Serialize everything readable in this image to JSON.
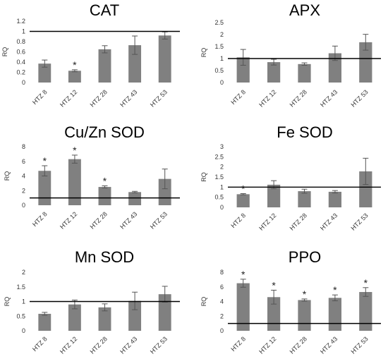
{
  "chart_data": [
    {
      "type": "bar",
      "title": "CAT",
      "ylabel": "RQ",
      "categories": [
        "HTZ 8",
        "HTZ 12",
        "HTZ 28",
        "HTZ 43",
        "HTZ 53"
      ],
      "values": [
        0.37,
        0.23,
        0.65,
        0.73,
        0.92
      ],
      "errors": [
        0.07,
        0.02,
        0.07,
        0.18,
        0.07
      ],
      "significant": [
        "",
        "*",
        "",
        "",
        ""
      ],
      "reference_line": 1,
      "ylim": [
        0,
        1.2
      ],
      "yticks": [
        0,
        0.2,
        0.4,
        0.6,
        0.8,
        1,
        1.2
      ],
      "ytick_labels": [
        "0",
        "0.2",
        "0.4",
        "0.6",
        "0.8",
        "1",
        "1.2"
      ],
      "bar_color": "#808080",
      "grid": false
    },
    {
      "type": "bar",
      "title": "APX",
      "ylabel": "RQ",
      "categories": [
        "HTZ 8",
        "HTZ 12",
        "HTZ 28",
        "HTZ 43",
        "HTZ 53"
      ],
      "values": [
        1.05,
        0.85,
        0.77,
        1.22,
        1.68
      ],
      "errors": [
        0.33,
        0.12,
        0.05,
        0.3,
        0.33
      ],
      "significant": [
        "",
        "",
        "",
        "",
        ""
      ],
      "reference_line": 1,
      "ylim": [
        0,
        2.5
      ],
      "yticks": [
        0,
        0.5,
        1,
        1.5,
        2,
        2.5
      ],
      "ytick_labels": [
        "0",
        "0.5",
        "1",
        "1.5",
        "2",
        "2.5"
      ],
      "bar_color": "#808080",
      "grid": false
    },
    {
      "type": "bar",
      "title": "Cu/Zn SOD",
      "ylabel": "RQ",
      "categories": [
        "HTZ 8",
        "HTZ 12",
        "HTZ 28",
        "HTZ 43",
        "HTZ 53"
      ],
      "values": [
        4.7,
        6.3,
        2.5,
        1.8,
        3.6
      ],
      "errors": [
        0.7,
        0.55,
        0.15,
        0.1,
        1.35
      ],
      "significant": [
        "*",
        "*",
        "*",
        "",
        ""
      ],
      "reference_line": 1,
      "ylim": [
        0,
        8
      ],
      "yticks": [
        0,
        2,
        4,
        6,
        8
      ],
      "ytick_labels": [
        "0",
        "2",
        "4",
        "6",
        "8"
      ],
      "bar_color": "#808080",
      "grid": false
    },
    {
      "type": "bar",
      "title": "Fe SOD",
      "ylabel": "RQ",
      "categories": [
        "HTZ 8",
        "HTZ 12",
        "HTZ 28",
        "HTZ 43",
        "HTZ 53"
      ],
      "values": [
        0.65,
        1.12,
        0.8,
        0.77,
        1.78
      ],
      "errors": [
        0.03,
        0.2,
        0.1,
        0.06,
        0.65
      ],
      "significant": [
        "*",
        "",
        "",
        "",
        ""
      ],
      "reference_line": 1,
      "ylim": [
        0,
        3
      ],
      "yticks": [
        0,
        0.5,
        1,
        1.5,
        2,
        2.5,
        3
      ],
      "ytick_labels": [
        "0",
        "0.5",
        "1",
        "1.5",
        "2",
        "2.5",
        "3"
      ],
      "bar_color": "#808080",
      "grid": false
    },
    {
      "type": "bar",
      "title": "Mn SOD",
      "ylabel": "RQ",
      "categories": [
        "HTZ 8",
        "HTZ 12",
        "HTZ 28",
        "HTZ 43",
        "HTZ 53"
      ],
      "values": [
        0.58,
        0.9,
        0.8,
        1.02,
        1.25
      ],
      "errors": [
        0.05,
        0.15,
        0.12,
        0.3,
        0.27
      ],
      "significant": [
        "",
        "",
        "",
        "",
        ""
      ],
      "reference_line": 1,
      "ylim": [
        0,
        2
      ],
      "yticks": [
        0,
        0.5,
        1,
        1.5,
        2
      ],
      "ytick_labels": [
        "0",
        "0.5",
        "1",
        "1.5",
        "2"
      ],
      "bar_color": "#808080",
      "grid": false
    },
    {
      "type": "bar",
      "title": "PPO",
      "ylabel": "RQ",
      "categories": [
        "HTZ 8",
        "HTZ 12",
        "HTZ 28",
        "HTZ 43",
        "HTZ 53"
      ],
      "values": [
        6.5,
        4.6,
        4.2,
        4.5,
        5.3
      ],
      "errors": [
        0.55,
        0.95,
        0.15,
        0.4,
        0.6
      ],
      "significant": [
        "*",
        "*",
        "*",
        "*",
        "*"
      ],
      "reference_line": 1,
      "ylim": [
        0,
        8
      ],
      "yticks": [
        0,
        2,
        4,
        6,
        8
      ],
      "ytick_labels": [
        "0",
        "2",
        "4",
        "6",
        "8"
      ],
      "bar_color": "#808080",
      "grid": false
    }
  ]
}
